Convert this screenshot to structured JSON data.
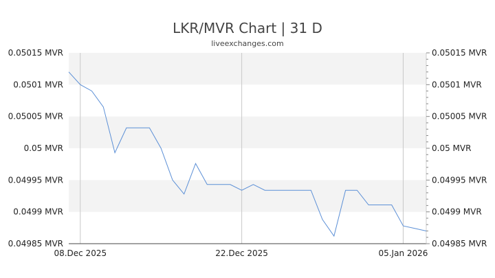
{
  "chart_data": {
    "type": "line",
    "title": "LKR/MVR Chart | 31 D",
    "subtitle": "liveexchanges.com",
    "xlabel": "",
    "ylabel": "",
    "unit": "MVR",
    "ylim": [
      0.04985,
      0.05015
    ],
    "yticks": [
      0.05015,
      0.0501,
      0.05005,
      0.05,
      0.04995,
      0.0499,
      0.04985
    ],
    "ytick_labels": [
      "0.05015 MVR",
      "0.0501 MVR",
      "0.05005 MVR",
      "0.05 MVR",
      "0.04995 MVR",
      "0.0499 MVR",
      "0.04985 MVR"
    ],
    "xlim": [
      "2025-12-07",
      "2026-01-07"
    ],
    "xticks": [
      "2025-12-08",
      "2025-12-22",
      "2026-01-05"
    ],
    "xtick_labels": [
      "08.Dec 2025",
      "22.Dec 2025",
      "05.Jan 2026"
    ],
    "grid": true,
    "line_color": "#5b8fd6",
    "band_color": "#f3f3f3",
    "series": [
      {
        "x": [
          "2025-12-07",
          "2025-12-08",
          "2025-12-09",
          "2025-12-10",
          "2025-12-11",
          "2025-12-12",
          "2025-12-13",
          "2025-12-14",
          "2025-12-15",
          "2025-12-16",
          "2025-12-17",
          "2025-12-18",
          "2025-12-19",
          "2025-12-20",
          "2025-12-21",
          "2025-12-22",
          "2025-12-23",
          "2025-12-24",
          "2025-12-25",
          "2025-12-26",
          "2025-12-27",
          "2025-12-28",
          "2025-12-29",
          "2025-12-30",
          "2025-12-31",
          "2026-01-01",
          "2026-01-02",
          "2026-01-03",
          "2026-01-04",
          "2026-01-05",
          "2026-01-06",
          "2026-01-07"
        ],
        "values": [
          0.05012,
          0.0501,
          0.05009,
          0.050065,
          0.049993,
          0.050032,
          0.050032,
          0.050032,
          0.05,
          0.04995,
          0.049928,
          0.049976,
          0.049943,
          0.049943,
          0.049943,
          0.049934,
          0.049943,
          0.049934,
          0.049934,
          0.049934,
          0.049934,
          0.049934,
          0.049888,
          0.049862,
          0.049934,
          0.049934,
          0.049911,
          0.049911,
          0.049911,
          0.049878,
          0.049874,
          0.04987
        ]
      }
    ]
  }
}
